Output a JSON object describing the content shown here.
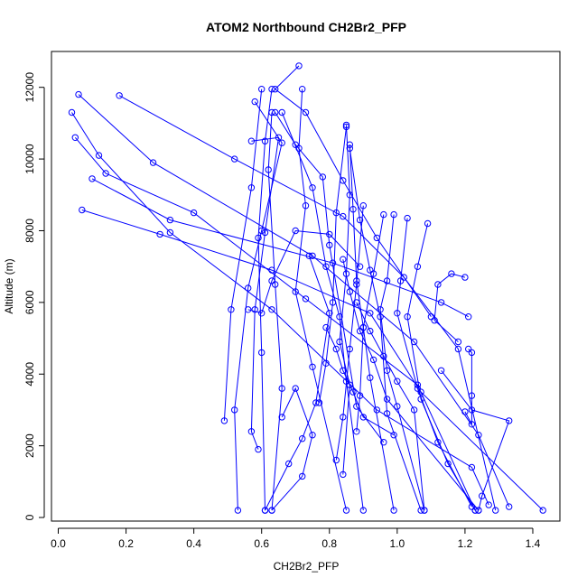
{
  "chart_data": {
    "type": "line",
    "title": "ATOM2 Northbound CH2Br2_PFP",
    "xlabel": "CH2Br2_PFP",
    "ylabel": "Altitude (m)",
    "xlim": [
      -0.02,
      1.48
    ],
    "ylim": [
      -100,
      13000
    ],
    "x_ticks": [
      0.0,
      0.2,
      0.4,
      0.6,
      0.8,
      1.0,
      1.2,
      1.4
    ],
    "x_tick_labels": [
      "0.0",
      "0.2",
      "0.4",
      "0.6",
      "0.8",
      "1.0",
      "1.2",
      "1.4"
    ],
    "y_ticks": [
      0,
      2000,
      4000,
      6000,
      8000,
      10000,
      12000
    ],
    "y_tick_labels": [
      "0",
      "2000",
      "4000",
      "6000",
      "8000",
      "10000",
      "12000"
    ],
    "grid": false,
    "line_color": "#0000ff",
    "marker": "open-circle",
    "series": [
      {
        "x": [
          0.06,
          0.28,
          0.75,
          1.05,
          1.24,
          1.33
        ],
        "y": [
          11800,
          9900,
          7300,
          4900,
          2300,
          300
        ]
      },
      {
        "x": [
          0.04,
          0.12,
          0.33,
          0.63,
          0.94,
          1.22,
          1.27
        ],
        "y": [
          11300,
          10100,
          7950,
          5800,
          3000,
          1400,
          350
        ]
      },
      {
        "x": [
          0.05,
          0.14,
          0.4,
          0.73,
          1.06,
          1.23
        ],
        "y": [
          10600,
          9600,
          8500,
          6100,
          3700,
          200
        ]
      },
      {
        "x": [
          0.18,
          0.52,
          0.84,
          1.02,
          1.18,
          1.29
        ],
        "y": [
          11770,
          10000,
          8400,
          6700,
          4700,
          200
        ]
      },
      {
        "x": [
          0.1,
          0.33,
          0.81,
          1.13,
          1.21
        ],
        "y": [
          9450,
          8300,
          7100,
          6000,
          5600
        ]
      },
      {
        "x": [
          0.07,
          0.3,
          0.63,
          0.92,
          1.07,
          1.43
        ],
        "y": [
          8580,
          7900,
          6900,
          5700,
          3500,
          200
        ]
      },
      {
        "x": [
          0.71,
          0.64,
          0.73,
          0.84,
          0.94,
          1.1
        ],
        "y": [
          12600,
          11950,
          11300,
          9400,
          7800,
          5600
        ]
      },
      {
        "x": [
          0.6,
          0.57,
          0.51,
          0.49
        ],
        "y": [
          11950,
          9200,
          5800,
          2700
        ]
      },
      {
        "x": [
          0.58,
          0.66,
          0.6,
          0.56,
          0.52,
          0.53
        ],
        "y": [
          11600,
          10450,
          8000,
          6400,
          3000,
          200
        ]
      },
      {
        "x": [
          0.63,
          0.61,
          0.59,
          0.6,
          0.61
        ],
        "y": [
          11950,
          10500,
          7800,
          4600,
          200
        ]
      },
      {
        "x": [
          0.63,
          0.62,
          0.64,
          0.66,
          0.63
        ],
        "y": [
          11300,
          9700,
          6500,
          3600,
          200
        ]
      },
      {
        "x": [
          0.72,
          0.71,
          0.73,
          0.7,
          0.75,
          0.85
        ],
        "y": [
          11950,
          10300,
          8700,
          6300,
          4200,
          200
        ]
      },
      {
        "x": [
          0.57,
          0.65,
          0.61,
          0.58,
          0.57,
          0.59
        ],
        "y": [
          10500,
          10600,
          7950,
          5800,
          2400,
          1900
        ]
      },
      {
        "x": [
          0.64,
          0.7,
          0.78,
          0.8,
          0.88,
          0.96
        ],
        "y": [
          11300,
          10400,
          9500,
          7600,
          3100,
          2100
        ]
      },
      {
        "x": [
          0.66,
          0.75,
          0.79,
          0.83,
          0.85,
          0.9
        ],
        "y": [
          11300,
          9200,
          7000,
          5600,
          3800,
          200
        ]
      },
      {
        "x": [
          0.85,
          0.86,
          0.85,
          0.83,
          0.86,
          0.84
        ],
        "y": [
          10950,
          9000,
          6800,
          4900,
          3700,
          1200
        ]
      },
      {
        "x": [
          0.85,
          0.82,
          0.81,
          0.79,
          0.77
        ],
        "y": [
          10900,
          8500,
          6000,
          4300,
          3200
        ]
      },
      {
        "x": [
          0.86,
          0.87,
          0.88,
          0.9,
          0.92,
          0.99
        ],
        "y": [
          10400,
          8600,
          6600,
          5300,
          3900,
          200
        ]
      },
      {
        "x": [
          0.86,
          0.89,
          0.92,
          0.95,
          0.97,
          1.07
        ],
        "y": [
          10300,
          8300,
          6900,
          5600,
          2900,
          200
        ]
      },
      {
        "x": [
          0.9,
          0.88,
          0.86,
          0.84,
          0.82
        ],
        "y": [
          8700,
          6500,
          4700,
          2800,
          1600
        ]
      },
      {
        "x": [
          0.96,
          0.93,
          0.9,
          0.89,
          0.88
        ],
        "y": [
          8450,
          6800,
          5300,
          3400,
          2400
        ]
      },
      {
        "x": [
          0.99,
          0.97,
          0.95,
          0.97,
          1.0,
          1.08
        ],
        "y": [
          8450,
          6600,
          5800,
          4100,
          3100,
          200
        ]
      },
      {
        "x": [
          1.03,
          1.01,
          1.0,
          1.06,
          1.12,
          1.22
        ],
        "y": [
          8350,
          6600,
          5700,
          3600,
          2100,
          300
        ]
      },
      {
        "x": [
          1.09,
          1.06,
          1.03,
          1.07,
          1.15,
          1.23
        ],
        "y": [
          8200,
          7000,
          5600,
          3300,
          1500,
          200
        ]
      },
      {
        "x": [
          1.2,
          1.16,
          1.12,
          1.11,
          1.18
        ],
        "y": [
          6700,
          6800,
          6500,
          5500,
          4900
        ]
      },
      {
        "x": [
          1.21,
          1.22,
          1.22,
          1.22,
          1.2
        ],
        "y": [
          4700,
          4600,
          3400,
          2600,
          2950
        ]
      },
      {
        "x": [
          1.13,
          1.22,
          1.33,
          1.25,
          1.24
        ],
        "y": [
          4100,
          3000,
          2700,
          600,
          200
        ]
      },
      {
        "x": [
          0.74,
          0.8,
          0.76,
          0.72,
          0.68,
          0.61
        ],
        "y": [
          7300,
          5700,
          3200,
          2200,
          1500,
          200
        ]
      },
      {
        "x": [
          0.66,
          0.7,
          0.75,
          0.72,
          0.63
        ],
        "y": [
          2800,
          3600,
          2300,
          1150,
          200
        ]
      },
      {
        "x": [
          0.56,
          0.6,
          0.63,
          0.7,
          0.8,
          0.89
        ],
        "y": [
          5800,
          5700,
          6600,
          8000,
          7900,
          7000
        ]
      },
      {
        "x": [
          0.79,
          0.82,
          0.84,
          0.87,
          0.9,
          0.99
        ],
        "y": [
          5300,
          4700,
          4100,
          3500,
          2800,
          2300
        ]
      },
      {
        "x": [
          0.88,
          0.92,
          0.96,
          1.0,
          1.05,
          1.08
        ],
        "y": [
          6000,
          5200,
          4500,
          3800,
          3000,
          200
        ]
      },
      {
        "x": [
          0.84,
          0.86,
          0.89,
          0.93,
          0.97,
          1.24
        ],
        "y": [
          7200,
          6300,
          5200,
          4400,
          3300,
          200
        ]
      }
    ]
  }
}
